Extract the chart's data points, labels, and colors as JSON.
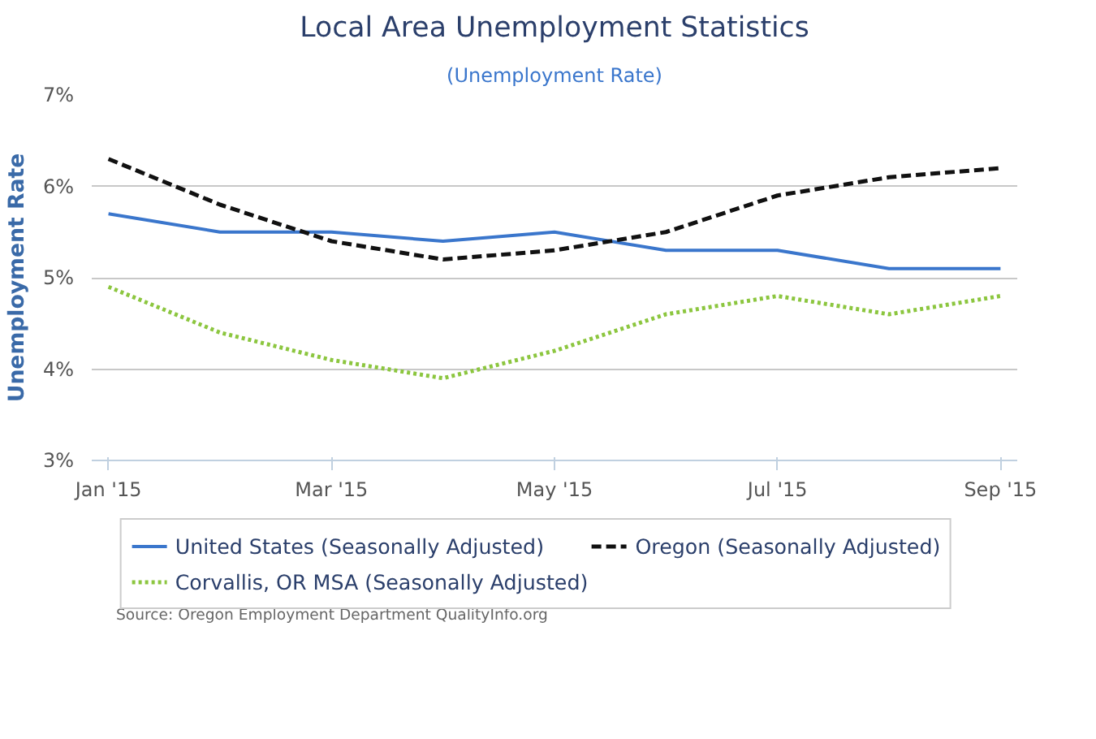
{
  "chart_data": {
    "type": "line",
    "title": "Local Area Unemployment Statistics",
    "subtitle": "(Unemployment Rate)",
    "ylabel": "Unemployment Rate",
    "categories": [
      "Jan '15",
      null,
      "Mar '15",
      null,
      "May '15",
      null,
      "Jul '15",
      null,
      "Sep '15"
    ],
    "series": [
      {
        "name": "United States (Seasonally Adjusted)",
        "color": "#3a76cc",
        "line_style": "solid",
        "values": [
          5.7,
          5.5,
          5.5,
          5.4,
          5.5,
          5.3,
          5.3,
          5.1,
          5.1
        ]
      },
      {
        "name": "Oregon (Seasonally Adjusted)",
        "color": "#111111",
        "line_style": "dashed",
        "values": [
          6.3,
          5.8,
          5.4,
          5.2,
          5.3,
          5.5,
          5.9,
          6.1,
          6.2
        ]
      },
      {
        "name": "Corvallis, OR MSA (Seasonally Adjusted)",
        "color": "#8cc63f",
        "line_style": "dotted",
        "values": [
          4.9,
          4.4,
          4.1,
          3.9,
          4.2,
          4.6,
          4.8,
          4.6,
          4.8
        ]
      }
    ],
    "ylim": [
      3,
      7
    ],
    "yticks": [
      {
        "value": 3,
        "label": "3%"
      },
      {
        "value": 4,
        "label": "4%"
      },
      {
        "value": 5,
        "label": "5%"
      },
      {
        "value": 6,
        "label": "6%"
      },
      {
        "value": 7,
        "label": "7%"
      }
    ],
    "grid": "y",
    "legend": "bottom",
    "marker": "none",
    "annotations": [
      "Source: Oregon Employment Department QualityInfo.org"
    ]
  }
}
